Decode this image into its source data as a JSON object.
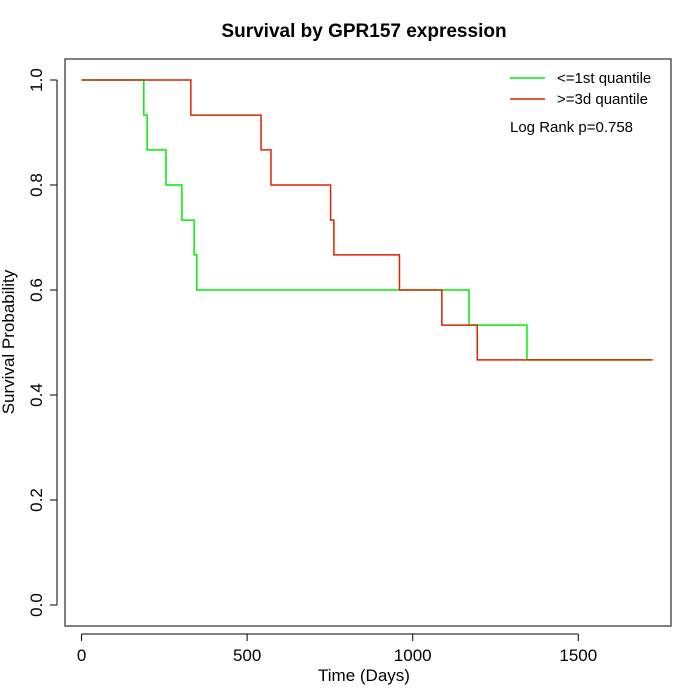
{
  "chart_data": {
    "type": "line",
    "title": "Survival by GPR157 expression",
    "xlabel": "Time (Days)",
    "ylabel": "Survival Probability",
    "xlim": [
      -50,
      1780
    ],
    "ylim": [
      -0.04,
      1.04
    ],
    "xticks": [
      0,
      500,
      1000,
      1500
    ],
    "yticks": [
      0.0,
      0.2,
      0.4,
      0.6,
      0.8,
      1.0
    ],
    "xtick_labels": [
      "0",
      "500",
      "1000",
      "1500"
    ],
    "ytick_labels": [
      "0.0",
      "0.2",
      "0.4",
      "0.6",
      "0.8",
      "1.0"
    ],
    "grid": false,
    "legend_position": "top-right",
    "annotation": "Log Rank p=0.758",
    "series": [
      {
        "name": "<=1st quantile",
        "color": "#00ee00",
        "step": true,
        "x": [
          0,
          188,
          198,
          255,
          303,
          340,
          348,
          1170,
          1345,
          1720
        ],
        "y": [
          1.0,
          0.933,
          0.867,
          0.8,
          0.733,
          0.667,
          0.6,
          0.533,
          0.467,
          0.467
        ]
      },
      {
        "name": ">=3d quantile",
        "color": "#dd2200",
        "step": true,
        "x": [
          0,
          330,
          542,
          572,
          752,
          762,
          960,
          1088,
          1195,
          1725
        ],
        "y": [
          1.0,
          0.933,
          0.867,
          0.8,
          0.733,
          0.667,
          0.6,
          0.533,
          0.467,
          0.467
        ]
      }
    ]
  }
}
